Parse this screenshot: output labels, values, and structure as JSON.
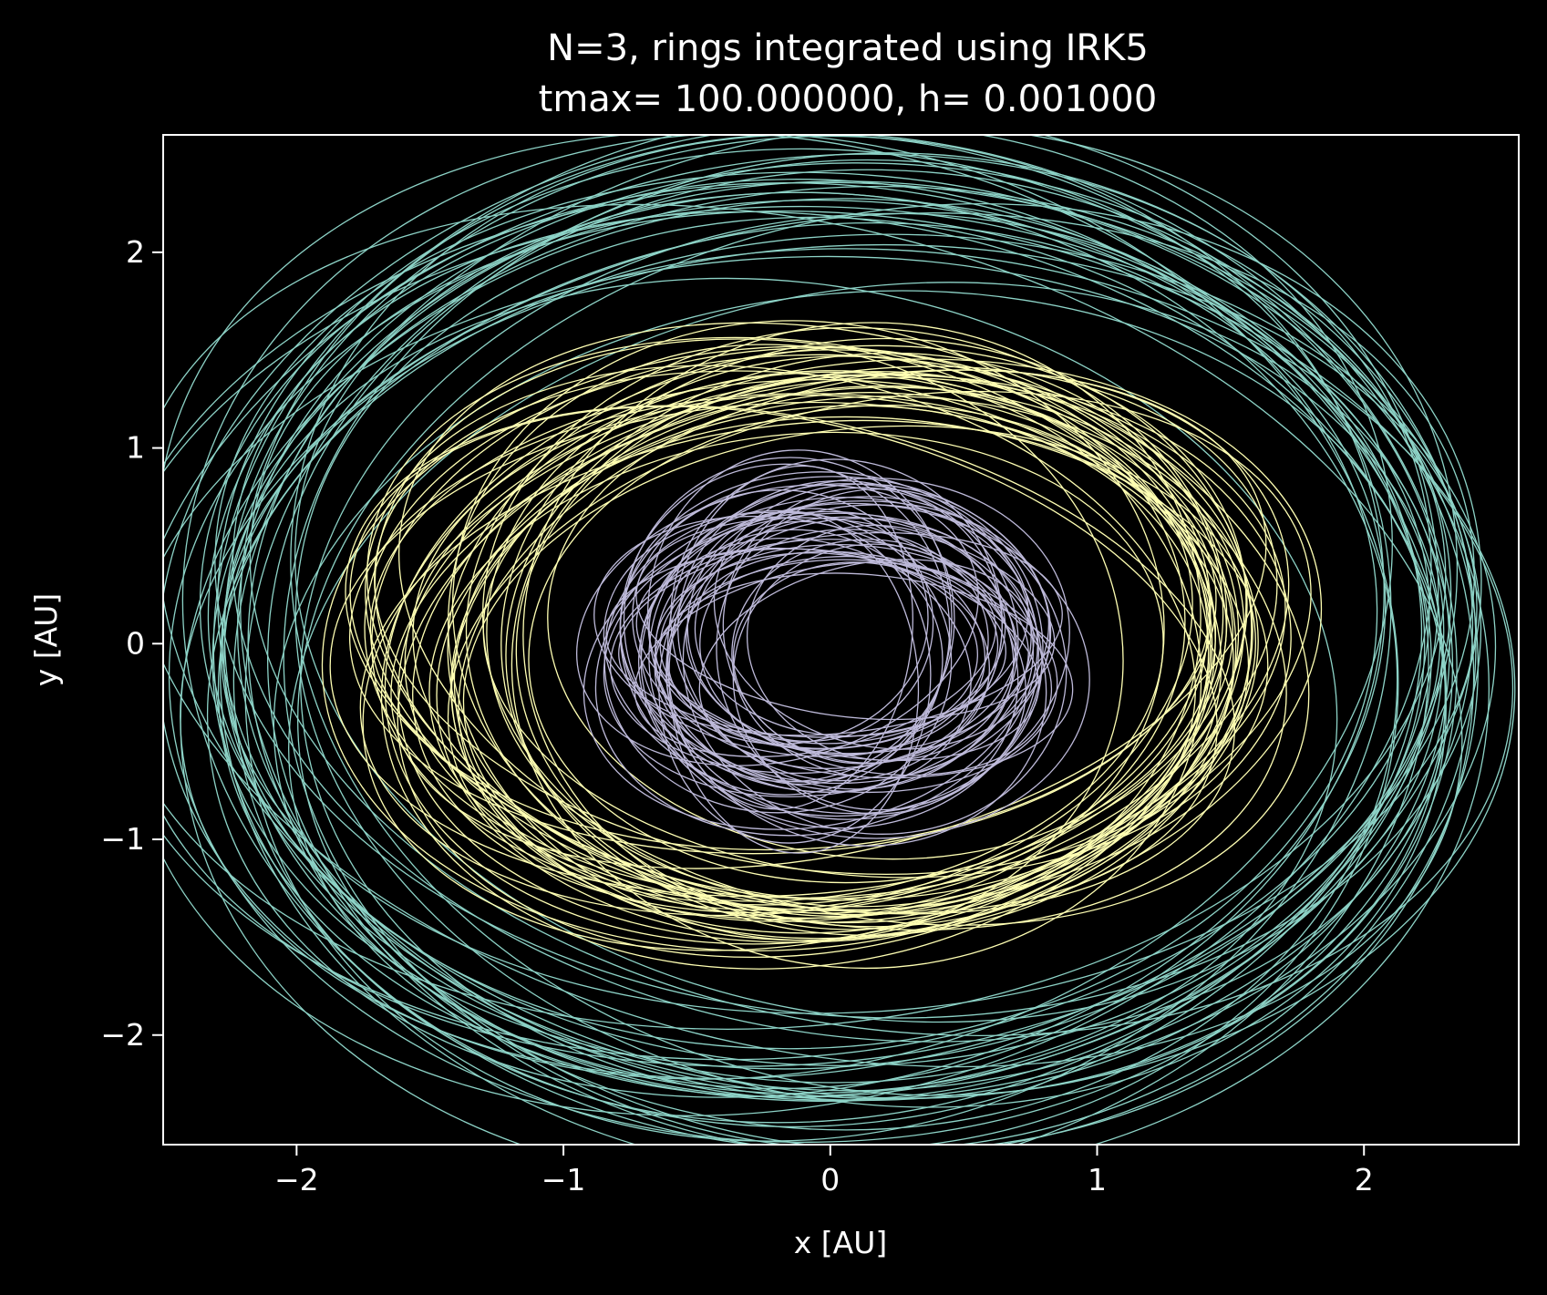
{
  "chart_data": {
    "type": "line",
    "title_line1": "N=3, rings integrated using IRK5",
    "title_line2": "tmax= 100.000000, h= 0.001000",
    "xlabel": "x [AU]",
    "ylabel": "y [AU]",
    "xlim": [
      -2.5,
      2.58
    ],
    "ylim": [
      -2.56,
      2.6
    ],
    "xticks": [
      -2,
      -1,
      0,
      1,
      2
    ],
    "yticks": [
      -2,
      -1,
      0,
      1,
      2
    ],
    "xtick_labels": [
      "−2",
      "−1",
      "0",
      "1",
      "2"
    ],
    "ytick_labels": [
      "−2",
      "−1",
      "0",
      "1",
      "2"
    ],
    "grid": false,
    "background": "#000000",
    "foreground": "#ffffff",
    "series": [
      {
        "color": "#8dd3c7",
        "semi_major_range": [
          2.05,
          2.55
        ],
        "semi_minor_range": [
          1.95,
          2.6
        ],
        "center_x_range": [
          -0.25,
          0.25
        ],
        "center_y_range": [
          -0.25,
          0.25
        ],
        "orbit_count": 40
      },
      {
        "color": "#ffffb3",
        "semi_major_range": [
          1.25,
          1.75
        ],
        "semi_minor_range": [
          1.15,
          1.55
        ],
        "center_x_range": [
          -0.2,
          0.2
        ],
        "center_y_range": [
          -0.15,
          0.15
        ],
        "orbit_count": 45
      },
      {
        "color": "#bebada",
        "semi_major_range": [
          0.45,
          0.85
        ],
        "semi_minor_range": [
          0.45,
          0.9
        ],
        "center_x_range": [
          -0.2,
          0.2
        ],
        "center_y_range": [
          -0.2,
          0.15
        ],
        "orbit_count": 50
      }
    ]
  }
}
